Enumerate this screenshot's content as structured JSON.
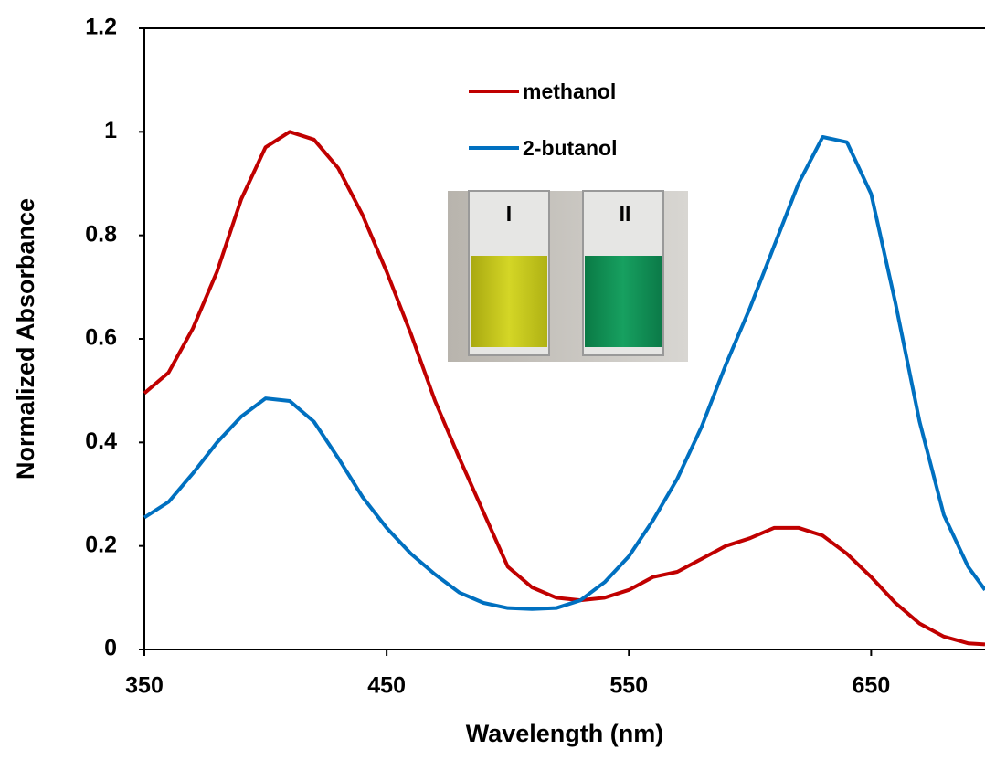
{
  "chart_data": {
    "type": "line",
    "xlabel": "Wavelength (nm)",
    "ylabel": "Normalized Absorbance",
    "x": [
      350,
      360,
      370,
      380,
      390,
      400,
      410,
      420,
      430,
      440,
      450,
      460,
      470,
      480,
      490,
      500,
      510,
      520,
      530,
      540,
      550,
      560,
      570,
      580,
      590,
      600,
      610,
      620,
      630,
      640,
      650,
      660,
      670,
      680,
      690,
      697
    ],
    "series": [
      {
        "name": "methanol",
        "color": "#c00000",
        "values": [
          0.495,
          0.535,
          0.62,
          0.73,
          0.87,
          0.97,
          1.0,
          0.985,
          0.93,
          0.84,
          0.73,
          0.61,
          0.48,
          0.37,
          0.265,
          0.16,
          0.12,
          0.1,
          0.095,
          0.1,
          0.115,
          0.14,
          0.15,
          0.175,
          0.2,
          0.215,
          0.235,
          0.235,
          0.22,
          0.185,
          0.14,
          0.09,
          0.05,
          0.025,
          0.012,
          0.01
        ]
      },
      {
        "name": "2-butanol",
        "color": "#0070c0",
        "values": [
          0.255,
          0.285,
          0.34,
          0.4,
          0.45,
          0.485,
          0.48,
          0.44,
          0.37,
          0.295,
          0.235,
          0.185,
          0.145,
          0.11,
          0.09,
          0.08,
          0.078,
          0.08,
          0.095,
          0.13,
          0.18,
          0.25,
          0.33,
          0.43,
          0.55,
          0.66,
          0.78,
          0.9,
          0.99,
          0.98,
          0.88,
          0.67,
          0.44,
          0.26,
          0.16,
          0.115
        ]
      }
    ],
    "xlim": [
      350,
      697
    ],
    "xticks": [
      350,
      450,
      550,
      650
    ],
    "ylim": [
      0,
      1.2
    ],
    "yticks": [
      0,
      0.2,
      0.4,
      0.6,
      0.8,
      1,
      1.2
    ],
    "grid": false,
    "legend": "top-center",
    "inset_labels": [
      "I",
      "II"
    ]
  }
}
